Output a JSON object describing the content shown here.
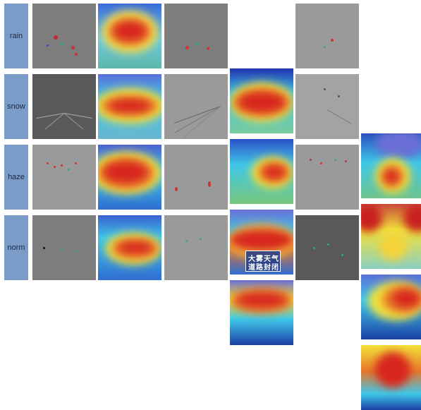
{
  "rows": [
    {
      "label": "rain"
    },
    {
      "label": "snow"
    },
    {
      "label": "haze"
    },
    {
      "label": "norm"
    }
  ],
  "sign": {
    "line1": "大雾天气",
    "line2": "道路封闭"
  },
  "colors": {
    "label_bg": "#7b9bc8",
    "heat_red": "#d7261e",
    "heat_yellow": "#f2e23a",
    "heat_cyan": "#3fc7e8",
    "heat_blue": "#1b3fa6"
  }
}
